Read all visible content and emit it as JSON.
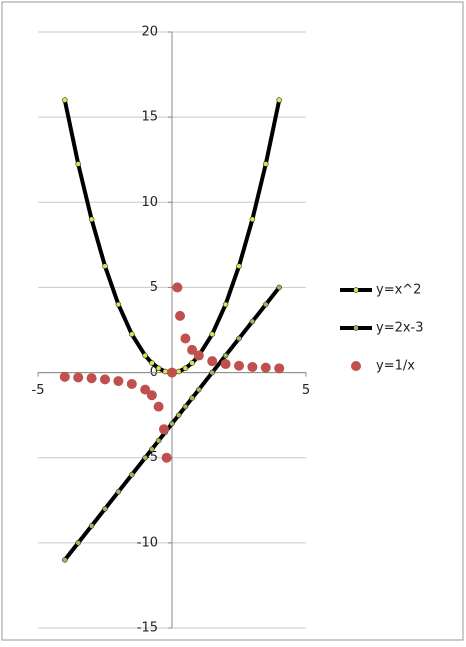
{
  "chart_data": {
    "type": "scatter",
    "xlim": [
      -5,
      5
    ],
    "xticks": [
      -5,
      5
    ],
    "ylim": [
      -15,
      20
    ],
    "yticks": [
      -15,
      -10,
      -5,
      0,
      5,
      10,
      15,
      20
    ],
    "grid": true,
    "legend": "right",
    "series": [
      {
        "name": "y=x^2",
        "color": "#000000",
        "marker_color": "#d4e34f",
        "line": true,
        "x": [
          -4,
          -3.5,
          -3,
          -2.5,
          -2,
          -1.5,
          -1,
          -0.75,
          -0.5,
          -0.25,
          0,
          0.25,
          0.5,
          0.75,
          1,
          1.5,
          2,
          2.5,
          3,
          3.5,
          4
        ],
        "values": [
          16,
          12.25,
          9,
          6.25,
          4,
          2.25,
          1,
          0.56,
          0.25,
          0.06,
          0,
          0.06,
          0.25,
          0.56,
          1,
          2.25,
          4,
          6.25,
          9,
          12.25,
          16
        ]
      },
      {
        "name": "y=2x-3",
        "color": "#000000",
        "marker_color": "#9bbb59",
        "line": true,
        "x": [
          -4,
          -3.5,
          -3,
          -2.5,
          -2,
          -1.5,
          -1,
          -0.75,
          -0.5,
          -0.25,
          0,
          0.25,
          0.5,
          0.75,
          1,
          1.5,
          2,
          2.5,
          3,
          3.5,
          4
        ],
        "values": [
          -11,
          -10,
          -9,
          -8,
          -7,
          -6,
          -5,
          -4.5,
          -4,
          -3.5,
          -3,
          -2.5,
          -2,
          -1.5,
          -1,
          0,
          1,
          2,
          3,
          4,
          5
        ]
      },
      {
        "name": "y=1/x",
        "color": "#c0504d",
        "line": false,
        "x": [
          -4,
          -3.5,
          -3,
          -2.5,
          -2,
          -1.5,
          -1,
          -0.75,
          -0.5,
          -0.3,
          -0.2,
          0,
          0.2,
          0.3,
          0.5,
          0.75,
          1,
          1.5,
          2,
          2.5,
          3,
          3.5,
          4
        ],
        "values": [
          -0.25,
          -0.29,
          -0.33,
          -0.4,
          -0.5,
          -0.67,
          -1,
          -1.33,
          -2,
          -3.33,
          -5,
          0,
          5,
          3.33,
          2,
          1.33,
          1,
          0.67,
          0.5,
          0.4,
          0.33,
          0.29,
          0.25
        ]
      }
    ]
  }
}
